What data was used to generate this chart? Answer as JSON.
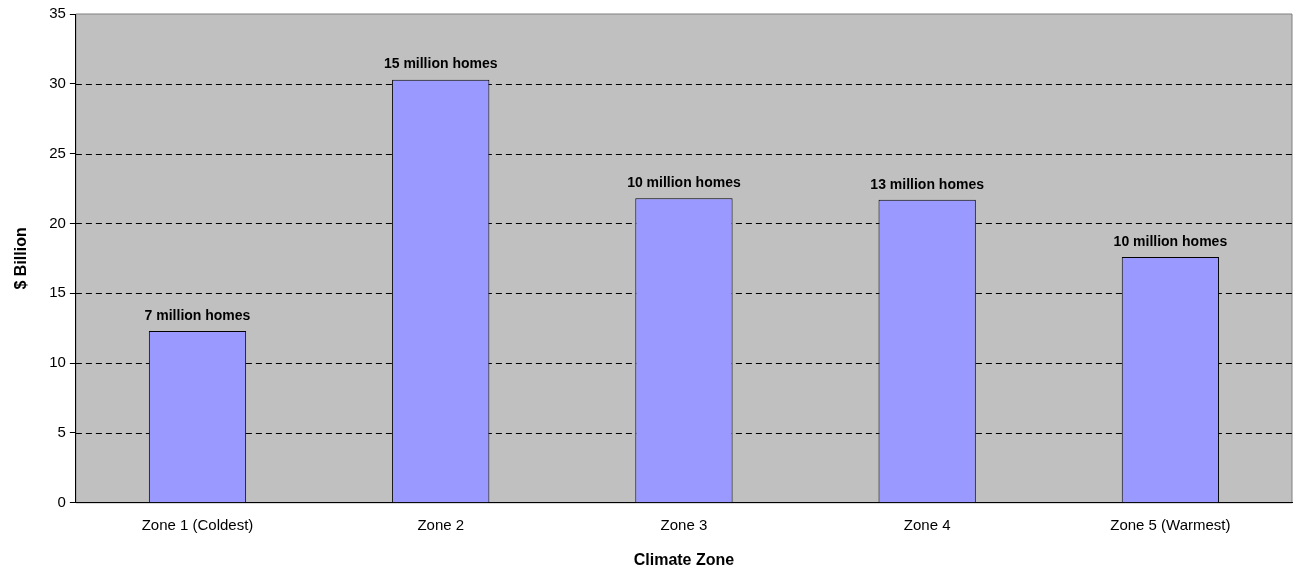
{
  "chart_data": {
    "type": "bar",
    "xlabel": "Climate Zone",
    "ylabel": "$ Billion",
    "categories": [
      "Zone 1 (Coldest)",
      "Zone 2",
      "Zone 3",
      "Zone 4",
      "Zone 5 (Warmest)"
    ],
    "values": [
      12.3,
      30.3,
      21.8,
      21.7,
      17.6
    ],
    "annotations": [
      {
        "text": "7 million homes",
        "x": "Zone 1 (Coldest)",
        "y": 12.3
      },
      {
        "text": "15 million homes",
        "x": "Zone 2",
        "y": 30.3
      },
      {
        "text": "10 million homes",
        "x": "Zone 3",
        "y": 21.8
      },
      {
        "text": "13 million homes",
        "x": "Zone 4",
        "y": 21.7
      },
      {
        "text": "10 million homes",
        "x": "Zone 5 (Warmest)",
        "y": 17.6
      }
    ],
    "color": "#9999ff",
    "ylim": [
      0,
      35
    ],
    "yticks": [
      0,
      5,
      10,
      15,
      20,
      25,
      30,
      35
    ],
    "grid": "y",
    "legend": false
  }
}
